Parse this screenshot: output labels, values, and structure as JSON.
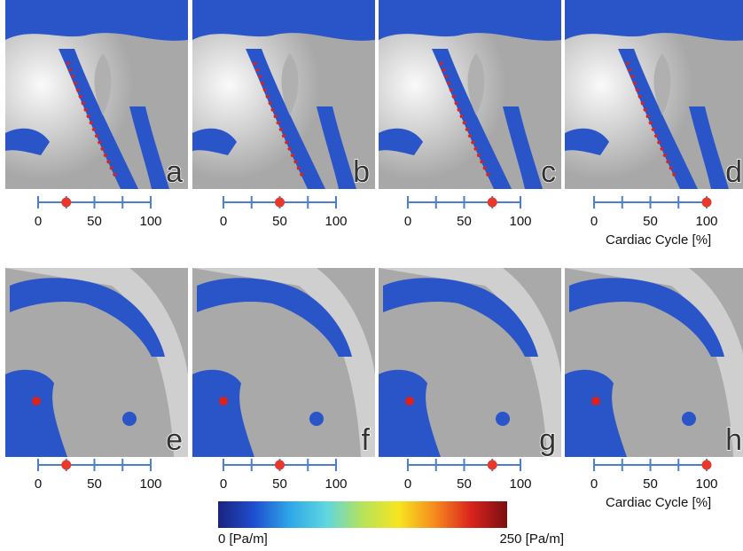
{
  "panels": [
    {
      "label": "a",
      "marker": 25
    },
    {
      "label": "b",
      "marker": 50
    },
    {
      "label": "c",
      "marker": 75
    },
    {
      "label": "d",
      "marker": 100
    },
    {
      "label": "e",
      "marker": 25
    },
    {
      "label": "f",
      "marker": 50
    },
    {
      "label": "g",
      "marker": 75
    },
    {
      "label": "h",
      "marker": 100
    }
  ],
  "slider": {
    "range": [
      0,
      100
    ],
    "ticks": [
      0,
      {
        "value": 25,
        "label": null
      },
      50,
      {
        "value": 75,
        "label": null
      },
      100
    ],
    "axis_title": "Cardiac Cycle [%]"
  },
  "colorbar": {
    "min_label": "0 [Pa/m]",
    "max_label": "250 [Pa/m]",
    "colors": [
      "#1a237e",
      "#1e4fd0",
      "#2fa8e8",
      "#5fd6e0",
      "#b6e35a",
      "#f7e51f",
      "#f58a1f",
      "#d9231c",
      "#7a0f12"
    ]
  }
}
